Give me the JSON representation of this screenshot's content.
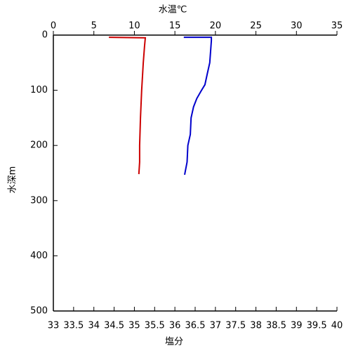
{
  "chart_data": {
    "type": "line",
    "xlabel": "塩分",
    "xlabel_color": "#cc0000",
    "x2label": "水温℃",
    "x2label_color": "#0000cc",
    "ylabel": "水深m",
    "xlim": [
      33,
      40
    ],
    "xticks": [
      33,
      33.5,
      34,
      34.5,
      35,
      35.5,
      36,
      36.5,
      37,
      37.5,
      38,
      38.5,
      39,
      39.5,
      40
    ],
    "x2lim": [
      0,
      35
    ],
    "x2ticks": [
      0,
      5,
      10,
      15,
      20,
      25,
      30,
      35
    ],
    "ylim": [
      0,
      500
    ],
    "yticks": [
      0,
      100,
      200,
      300,
      400,
      500
    ],
    "y_inverted": true,
    "series": [
      {
        "color": "#cc0000",
        "axis": "x",
        "x": [
          34.37,
          35.27,
          35.25,
          35.22,
          35.18,
          35.15,
          35.13,
          35.13,
          35.11
        ],
        "y": [
          4,
          5,
          20,
          50,
          100,
          150,
          200,
          230,
          252
        ]
      },
      {
        "color": "#0000cc",
        "axis": "x2",
        "x": [
          16.1,
          19.5,
          19.5,
          19.3,
          19.0,
          18.7,
          18.2,
          17.7,
          17.3,
          17.0,
          16.9,
          16.6,
          16.5,
          16.2
        ],
        "y": [
          4,
          4,
          10,
          50,
          70,
          90,
          102,
          115,
          130,
          150,
          180,
          200,
          230,
          253
        ]
      }
    ]
  }
}
